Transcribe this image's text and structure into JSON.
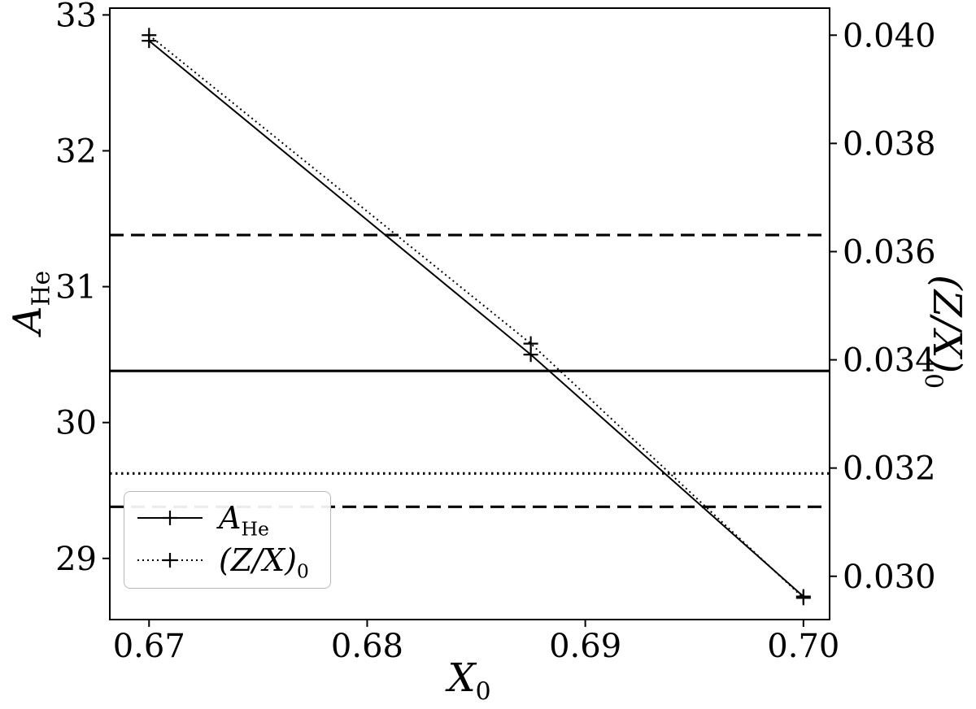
{
  "figure": {
    "background": "#ffffff",
    "frame_color": "#000000",
    "data_color": "#000000"
  },
  "chart_data": {
    "type": "line",
    "title": "",
    "xlabel": {
      "main": "X",
      "sub": "0"
    },
    "ylabel_left": {
      "main": "A",
      "sub": "He"
    },
    "ylabel_right": {
      "main": "(Z/X)",
      "sub": "0"
    },
    "xlim": [
      0.6682,
      0.7012
    ],
    "x_tick_values": [
      0.67,
      0.68,
      0.69,
      0.7
    ],
    "x_tick_labels": [
      "0.67",
      "0.68",
      "0.69",
      "0.70"
    ],
    "ylim_left": [
      28.55,
      33.05
    ],
    "y_tick_values_left": [
      29,
      30,
      31,
      32,
      33
    ],
    "y_tick_labels_left": [
      "29",
      "30",
      "31",
      "32",
      "33"
    ],
    "ylim_right": [
      0.0292,
      0.0405
    ],
    "y_tick_values_right": [
      0.03,
      0.032,
      0.034,
      0.036,
      0.038,
      0.04
    ],
    "y_tick_labels_right": [
      "0.030",
      "0.032",
      "0.034",
      "0.036",
      "0.038",
      "0.040"
    ],
    "grid": false,
    "series": [
      {
        "name": "A_He",
        "label": {
          "main": "A",
          "sub": "He"
        },
        "axis": "left",
        "line_style": "solid",
        "marker": "plus",
        "color": "#000000",
        "x": [
          0.67,
          0.6875,
          0.7
        ],
        "y": [
          32.81,
          30.5,
          28.72
        ]
      },
      {
        "name": "(Z/X)_0",
        "label": {
          "main": "(Z/X)",
          "sub": "0"
        },
        "axis": "right",
        "line_style": "dotted",
        "marker": "plus",
        "color": "#000000",
        "x": [
          0.67,
          0.6875,
          0.7
        ],
        "y": [
          0.04,
          0.0343,
          0.0296
        ]
      }
    ],
    "reference_lines": [
      {
        "axis": "left",
        "value": 30.38,
        "style": "solid",
        "color": "#000000"
      },
      {
        "axis": "left",
        "value": 31.38,
        "style": "dashed",
        "color": "#000000"
      },
      {
        "axis": "left",
        "value": 29.38,
        "style": "dashed",
        "color": "#000000"
      },
      {
        "axis": "right",
        "value": 0.0319,
        "style": "dotted",
        "color": "#000000"
      }
    ],
    "legend": {
      "position": "lower-left",
      "entries": [
        {
          "label": {
            "main": "A",
            "sub": "He"
          },
          "style": "solid",
          "marker": "plus"
        },
        {
          "label": {
            "main": "(Z/X)",
            "sub": "0"
          },
          "style": "dotted",
          "marker": "plus"
        }
      ]
    }
  }
}
